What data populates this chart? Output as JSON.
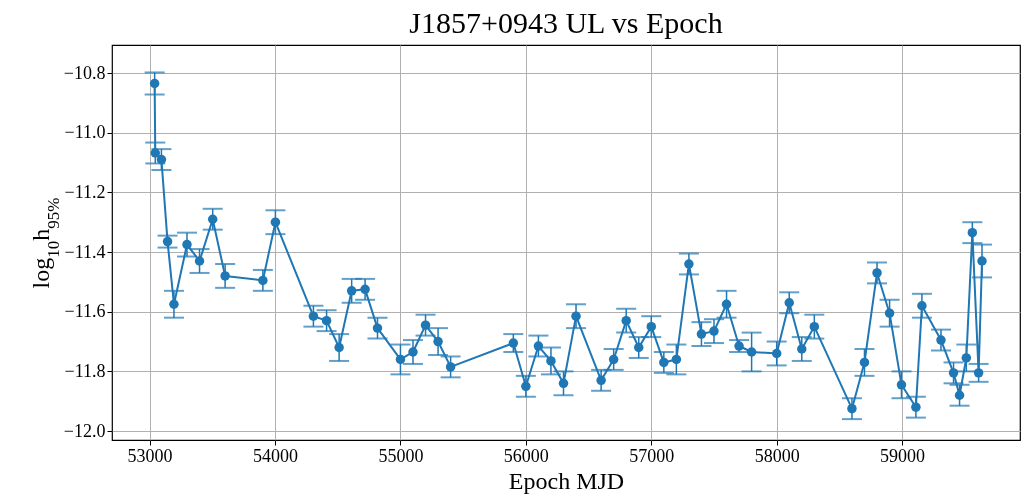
{
  "chart_data": {
    "type": "line",
    "title": "J1857+0943 UL vs Epoch",
    "xlabel": "Epoch MJD",
    "ylabel": "log$_{10}$h$_{95%}$",
    "x": [
      53040,
      53045,
      53094,
      53143,
      53194,
      53298,
      53398,
      53503,
      53602,
      53903,
      54003,
      54306,
      54411,
      54511,
      54611,
      54718,
      54817,
      55000,
      55100,
      55200,
      55300,
      55400,
      55900,
      56000,
      56100,
      56200,
      56300,
      56400,
      56600,
      56700,
      56800,
      56900,
      57000,
      57100,
      57200,
      57300,
      57400,
      57500,
      57600,
      57700,
      57800,
      58000,
      58100,
      58200,
      58300,
      58600,
      58700,
      58800,
      58900,
      58995,
      59110,
      59158,
      59310,
      59410,
      59458,
      59512,
      59560,
      59610,
      59637
    ],
    "series": [
      {
        "color": "#1f77b4",
        "values": [
          -10.835,
          -11.068,
          -11.09,
          -11.365,
          -11.575,
          -11.375,
          -11.43,
          -11.29,
          -11.48,
          -11.495,
          -11.3,
          -11.615,
          -11.63,
          -11.72,
          -11.53,
          -11.525,
          -11.655,
          -11.76,
          -11.735,
          -11.645,
          -11.7,
          -11.785,
          -11.705,
          -11.85,
          -11.715,
          -11.765,
          -11.84,
          -11.615,
          -11.83,
          -11.76,
          -11.63,
          -11.72,
          -11.65,
          -11.77,
          -11.76,
          -11.44,
          -11.675,
          -11.665,
          -11.575,
          -11.715,
          -11.735,
          -11.74,
          -11.57,
          -11.725,
          -11.65,
          -11.925,
          -11.77,
          -11.47,
          -11.605,
          -11.845,
          -11.92,
          -11.58,
          -11.695,
          -11.805,
          -11.88,
          -11.755,
          -11.335,
          -11.805,
          -11.43
        ],
        "errors": [
          0.037,
          0.035,
          0.035,
          0.02,
          0.045,
          0.04,
          0.04,
          0.035,
          0.04,
          0.035,
          0.04,
          0.035,
          0.035,
          0.045,
          0.04,
          0.035,
          0.035,
          0.05,
          0.04,
          0.035,
          0.045,
          0.035,
          0.03,
          0.035,
          0.035,
          0.045,
          0.04,
          0.04,
          0.035,
          0.035,
          0.04,
          0.035,
          0.035,
          0.035,
          0.05,
          0.035,
          0.04,
          0.04,
          0.045,
          0.02,
          0.065,
          0.04,
          0.035,
          0.04,
          0.04,
          0.035,
          0.045,
          0.035,
          0.045,
          0.045,
          0.035,
          0.04,
          0.035,
          0.035,
          0.035,
          0.045,
          0.035,
          0.03,
          0.055
        ]
      }
    ],
    "xlim": [
      52700,
      59940
    ],
    "ylim": [
      -12.03,
      -10.706
    ],
    "xticks": [
      53000,
      54000,
      55000,
      56000,
      57000,
      58000,
      59000
    ],
    "yticks": [
      {
        "value": -12.0,
        "label": "−12.0"
      },
      {
        "value": -11.8,
        "label": "−11.8"
      },
      {
        "value": -11.6,
        "label": "−11.6"
      },
      {
        "value": -11.4,
        "label": "−11.4"
      },
      {
        "value": -11.2,
        "label": "−11.2"
      },
      {
        "value": -11.0,
        "label": "−11.0"
      },
      {
        "value": -10.8,
        "label": "−10.8"
      }
    ],
    "grid": true,
    "marker": "circle",
    "line_style": "solid"
  }
}
